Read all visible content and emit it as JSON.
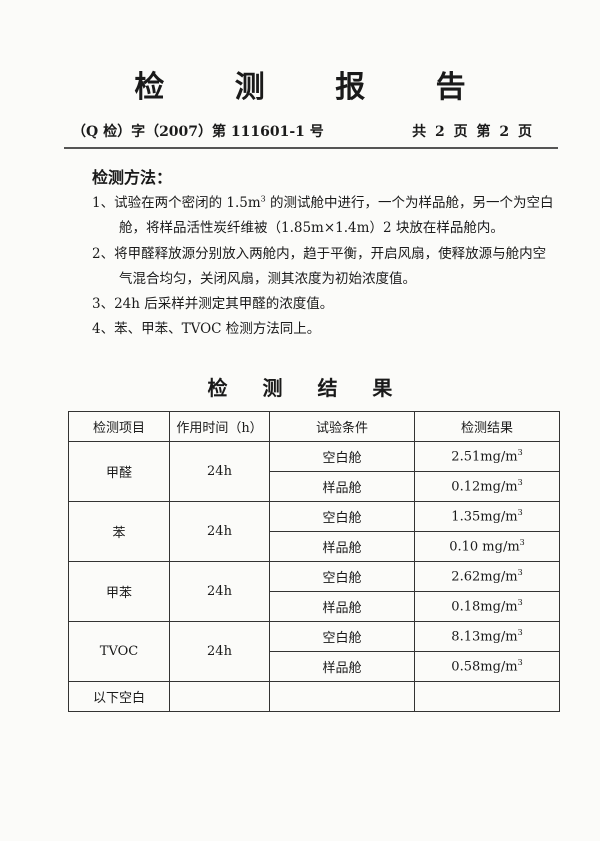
{
  "title": "检 测 报 告",
  "doc_number": "（Q 检）字（2007）第 111601-1 号",
  "page_info": "共 2 页  第 2 页",
  "method": {
    "heading": "检测方法：",
    "items": [
      {
        "prefix": "1、试验在两个密闭的 1.5m",
        "sup": "3",
        "suffix": " 的测试舱中进行，一个为样品舱，另一个为空白",
        "cont": "舱，将样品活性炭纤维被（1.85m×1.4m）2 块放在样品舱内。"
      },
      {
        "text": "2、将甲醛释放源分别放入两舱内，趋于平衡，开启风扇，使释放源与舱内空",
        "cont": "气混合均匀，关闭风扇，测其浓度为初始浓度值。"
      },
      {
        "text": "3、24h 后采样并测定其甲醛的浓度值。"
      },
      {
        "text": "4、苯、甲苯、TVOC 检测方法同上。"
      }
    ]
  },
  "results": {
    "heading": "检 测 结 果",
    "headers": [
      "检测项目",
      "作用时间（h）",
      "试验条件",
      "检测结果"
    ],
    "groups": [
      {
        "item": "甲醛",
        "time": "24h",
        "rows": [
          {
            "cond": "空白舱",
            "value": "2.51mg/m",
            "sup": "3"
          },
          {
            "cond": "样品舱",
            "value": "0.12mg/m",
            "sup": "3"
          }
        ]
      },
      {
        "item": "苯",
        "time": "24h",
        "rows": [
          {
            "cond": "空白舱",
            "value": "1.35mg/m",
            "sup": "3"
          },
          {
            "cond": "样品舱",
            "value": "0.10 mg/m",
            "sup": "3"
          }
        ]
      },
      {
        "item": "甲苯",
        "time": "24h",
        "rows": [
          {
            "cond": "空白舱",
            "value": "2.62mg/m",
            "sup": "3"
          },
          {
            "cond": "样品舱",
            "value": "0.18mg/m",
            "sup": "3"
          }
        ]
      },
      {
        "item": "TVOC",
        "time": "24h",
        "rows": [
          {
            "cond": "空白舱",
            "value": "8.13mg/m",
            "sup": "3"
          },
          {
            "cond": "样品舱",
            "value": "0.58mg/m",
            "sup": "3"
          }
        ]
      }
    ],
    "footer": "以下空白"
  }
}
